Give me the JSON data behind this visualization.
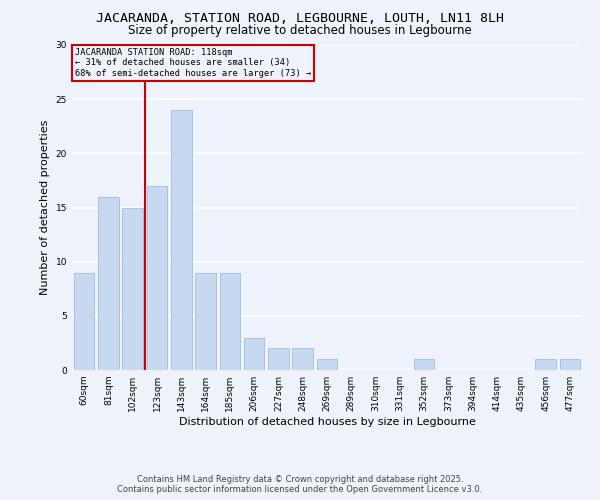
{
  "title": "JACARANDA, STATION ROAD, LEGBOURNE, LOUTH, LN11 8LH",
  "subtitle": "Size of property relative to detached houses in Legbourne",
  "xlabel": "Distribution of detached houses by size in Legbourne",
  "ylabel": "Number of detached properties",
  "categories": [
    "60sqm",
    "81sqm",
    "102sqm",
    "123sqm",
    "143sqm",
    "164sqm",
    "185sqm",
    "206sqm",
    "227sqm",
    "248sqm",
    "269sqm",
    "289sqm",
    "310sqm",
    "331sqm",
    "352sqm",
    "373sqm",
    "394sqm",
    "414sqm",
    "435sqm",
    "456sqm",
    "477sqm"
  ],
  "values": [
    9,
    16,
    15,
    17,
    24,
    9,
    9,
    3,
    2,
    2,
    1,
    0,
    0,
    0,
    1,
    0,
    0,
    0,
    0,
    1,
    1
  ],
  "bar_color": "#c6d9f1",
  "bar_edge_color": "#9ab3d5",
  "vline_x": 2.5,
  "vline_color": "#cc0000",
  "annotation_lines": [
    "JACARANDA STATION ROAD: 118sqm",
    "← 31% of detached houses are smaller (34)",
    "68% of semi-detached houses are larger (73) →"
  ],
  "annotation_box_color": "#cc0000",
  "ylim": [
    0,
    30
  ],
  "yticks": [
    0,
    5,
    10,
    15,
    20,
    25,
    30
  ],
  "footer_line1": "Contains HM Land Registry data © Crown copyright and database right 2025.",
  "footer_line2": "Contains public sector information licensed under the Open Government Licence v3.0.",
  "background_color": "#eef2fa",
  "grid_color": "#ffffff",
  "title_fontsize": 9.5,
  "subtitle_fontsize": 8.5,
  "axis_label_fontsize": 8,
  "tick_fontsize": 6.5,
  "footer_fontsize": 6
}
